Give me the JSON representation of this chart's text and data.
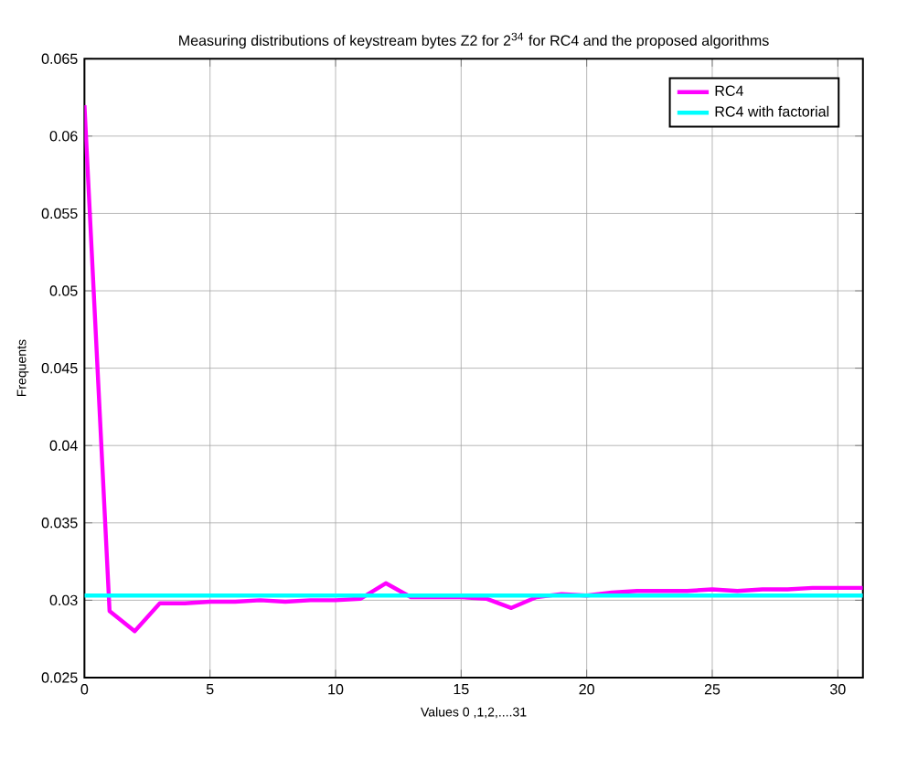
{
  "chart_data": {
    "type": "line",
    "title": "Measuring distributions of keystream bytes Z2 for 2$^{34}$ for RC4 and the proposed algorithms",
    "xlabel": "Values 0 ,1,2,....31",
    "ylabel": "Frequents",
    "x": [
      0,
      1,
      2,
      3,
      4,
      5,
      6,
      7,
      8,
      9,
      10,
      11,
      12,
      13,
      14,
      15,
      16,
      17,
      18,
      19,
      20,
      21,
      22,
      23,
      24,
      25,
      26,
      27,
      28,
      29,
      30,
      31
    ],
    "series": [
      {
        "name": "RC4",
        "color": "#ff00ff",
        "values": [
          0.062,
          0.0293,
          0.028,
          0.0298,
          0.0298,
          0.0299,
          0.0299,
          0.03,
          0.0299,
          0.03,
          0.03,
          0.0301,
          0.0311,
          0.0302,
          0.0302,
          0.0302,
          0.0301,
          0.0295,
          0.0302,
          0.0304,
          0.0303,
          0.0305,
          0.0306,
          0.0306,
          0.0306,
          0.0307,
          0.0306,
          0.0307,
          0.0307,
          0.0308,
          0.0308,
          0.0308
        ]
      },
      {
        "name": "RC4 with factorial",
        "color": "#00ffff",
        "values": [
          0.0303,
          0.0303,
          0.0303,
          0.0303,
          0.0303,
          0.0303,
          0.0303,
          0.0303,
          0.0303,
          0.0303,
          0.0303,
          0.0303,
          0.0303,
          0.0303,
          0.0303,
          0.0303,
          0.0303,
          0.0303,
          0.0303,
          0.0303,
          0.0303,
          0.0303,
          0.0303,
          0.0303,
          0.0303,
          0.0303,
          0.0303,
          0.0303,
          0.0303,
          0.0303,
          0.0303,
          0.0303
        ]
      }
    ],
    "xlim": [
      0,
      31
    ],
    "xticks": [
      0,
      5,
      10,
      15,
      20,
      25,
      30
    ],
    "ylim": [
      0.025,
      0.065
    ],
    "yticks": [
      0.025,
      0.03,
      0.035,
      0.04,
      0.045,
      0.05,
      0.055,
      0.06,
      0.065
    ],
    "grid": true,
    "legend": "top right",
    "marker": "none",
    "line_style": "solid"
  }
}
